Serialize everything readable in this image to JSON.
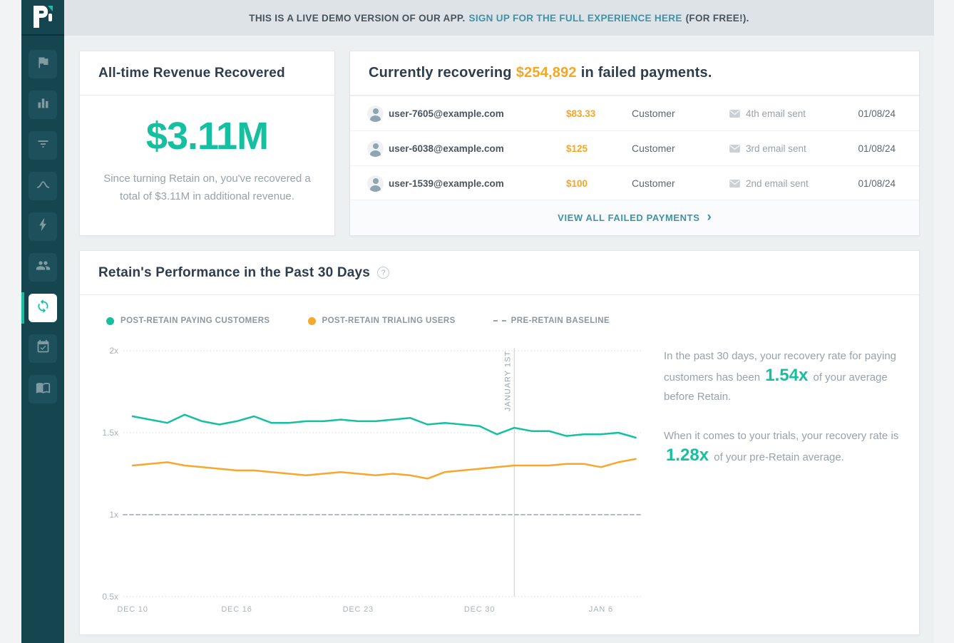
{
  "colors": {
    "teal": "#15c0a1",
    "orange": "#f5a623",
    "link": "#3d93a9",
    "sidebar-bg": "#15454f",
    "sidebar-item-bg": "#1d505b",
    "sidebar-icon": "#7f9aa2",
    "banner-bg": "#dde3e6",
    "main-bg": "#ecf0f1",
    "page-bg": "#f1f3f4",
    "card-border": "#e1e6e8",
    "heading": "#2e3d4d",
    "muted": "#98a2a9",
    "cell-dark": "#5c6771"
  },
  "banner": {
    "text_prefix": "THIS IS A LIVE DEMO VERSION OF OUR APP.",
    "link_text": "SIGN UP FOR THE FULL EXPERIENCE HERE",
    "text_suffix": "(FOR FREE!)."
  },
  "sidebar": {
    "logo": "profitwell-logo",
    "items": [
      {
        "icon": "flag"
      },
      {
        "icon": "bar-chart"
      },
      {
        "icon": "filter"
      },
      {
        "icon": "trend-peak"
      },
      {
        "icon": "lightning"
      },
      {
        "icon": "users"
      },
      {
        "icon": "sync",
        "active": true
      },
      {
        "icon": "calendar-check"
      },
      {
        "icon": "book"
      }
    ]
  },
  "revenue_card": {
    "title": "All-time Revenue Recovered",
    "amount": "$3.11M",
    "description": "Since turning Retain on, you've recovered a total of $3.11M in additional revenue."
  },
  "recovering_card": {
    "title_prefix": "Currently recovering",
    "amount": "$254,892",
    "title_suffix": "in failed payments.",
    "rows": [
      {
        "email": "user-7605@example.com",
        "amount": "$83.33",
        "type": "Customer",
        "status": "4th email sent",
        "date": "01/08/24"
      },
      {
        "email": "user-6038@example.com",
        "amount": "$125",
        "type": "Customer",
        "status": "3rd email sent",
        "date": "01/08/24"
      },
      {
        "email": "user-1539@example.com",
        "amount": "$100",
        "type": "Customer",
        "status": "2nd email sent",
        "date": "01/08/24"
      }
    ],
    "view_all_label": "VIEW ALL FAILED PAYMENTS"
  },
  "performance_card": {
    "title": "Retain's Performance in the Past 30 Days",
    "help_glyph": "?",
    "insight1_prefix": "In the past 30 days, your recovery rate for paying customers has been",
    "insight1_value": "1.54x",
    "insight1_suffix": "of your average before Retain.",
    "insight2_prefix": "When it comes to your trials, your recovery rate is",
    "insight2_value": "1.28x",
    "insight2_suffix": "of your pre-Retain average."
  },
  "chart_data": {
    "type": "line",
    "title": "Retain's Performance in the Past 30 Days",
    "x_unit": "day",
    "x_range_days": 30,
    "x_ticks": [
      {
        "label": "DEC 10",
        "day": 0
      },
      {
        "label": "DEC 16",
        "day": 6
      },
      {
        "label": "DEC 23",
        "day": 13
      },
      {
        "label": "DEC 30",
        "day": 20
      },
      {
        "label": "JAN 6",
        "day": 27
      }
    ],
    "y_ticks": [
      {
        "label": "2x",
        "value": 2
      },
      {
        "label": "1.5x",
        "value": 1.5
      },
      {
        "label": "1x",
        "value": 1
      },
      {
        "label": "0.5x",
        "value": 0.5
      }
    ],
    "ylim": [
      0.5,
      2
    ],
    "grid": "dotted-horizontal",
    "annotation": {
      "label": "JANUARY 1ST",
      "day": 22
    },
    "legend_position": "top-left",
    "series": [
      {
        "name": "POST-RETAIN PAYING CUSTOMERS",
        "color": "#15c0a1",
        "style": "solid",
        "marker": "dot",
        "values": [
          1.6,
          1.58,
          1.56,
          1.61,
          1.57,
          1.55,
          1.57,
          1.6,
          1.56,
          1.56,
          1.57,
          1.57,
          1.58,
          1.57,
          1.57,
          1.58,
          1.59,
          1.55,
          1.56,
          1.55,
          1.54,
          1.49,
          1.53,
          1.51,
          1.51,
          1.48,
          1.49,
          1.49,
          1.5,
          1.47
        ]
      },
      {
        "name": "POST-RETAIN TRIALING USERS",
        "color": "#f6a72c",
        "style": "solid",
        "marker": "dot",
        "values": [
          1.3,
          1.31,
          1.32,
          1.3,
          1.29,
          1.28,
          1.27,
          1.27,
          1.26,
          1.25,
          1.24,
          1.25,
          1.26,
          1.25,
          1.24,
          1.25,
          1.24,
          1.22,
          1.26,
          1.27,
          1.28,
          1.29,
          1.3,
          1.3,
          1.3,
          1.31,
          1.31,
          1.29,
          1.32,
          1.34
        ]
      },
      {
        "name": "PRE-RETAIN BASELINE",
        "color": "#b5bcc1",
        "style": "dashed",
        "marker": "dashes",
        "full_width": true,
        "values": [
          1,
          1,
          1,
          1,
          1,
          1,
          1,
          1,
          1,
          1,
          1,
          1,
          1,
          1,
          1,
          1,
          1,
          1,
          1,
          1,
          1,
          1,
          1,
          1,
          1,
          1,
          1,
          1,
          1,
          1
        ]
      }
    ]
  }
}
